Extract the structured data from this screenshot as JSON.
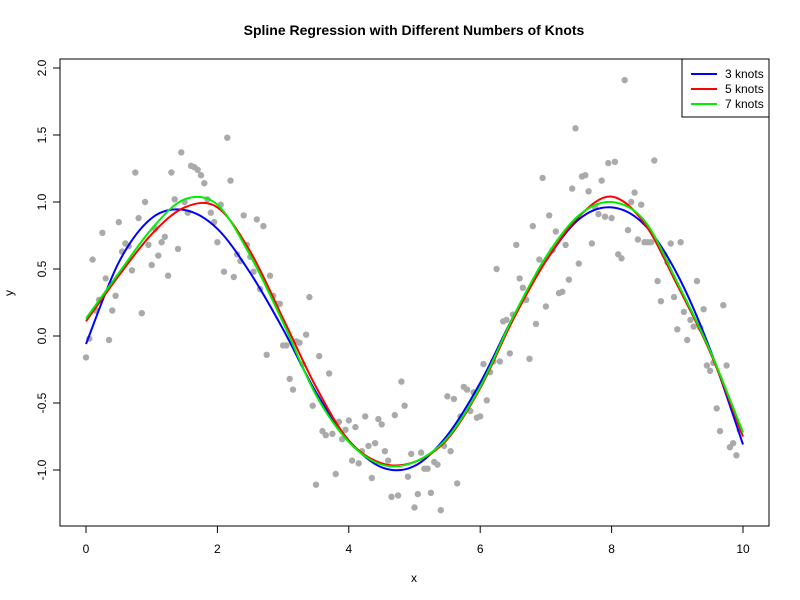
{
  "chart_data": {
    "type": "scatter",
    "title": "Spline Regression with Different Numbers of Knots",
    "xlabel": "x",
    "ylabel": "y",
    "xlim": [
      0,
      10
    ],
    "ylim": [
      -1.35,
      2.05
    ],
    "xticks": [
      0,
      2,
      4,
      6,
      8,
      10
    ],
    "yticks": [
      -1.0,
      -0.5,
      0.0,
      0.5,
      1.0,
      1.5,
      2.0
    ],
    "xtick_labels": [
      "0",
      "2",
      "4",
      "6",
      "8",
      "10"
    ],
    "ytick_labels": [
      "-1.0",
      "-0.5",
      "0.0",
      "0.5",
      "1.0",
      "1.5",
      "2.0"
    ],
    "grid": false,
    "legend_position": "top-right",
    "points_color": "#aaaaaa",
    "points": [
      [
        0.0,
        -0.16
      ],
      [
        0.05,
        -0.02
      ],
      [
        0.1,
        0.57
      ],
      [
        0.15,
        0.19
      ],
      [
        0.2,
        0.27
      ],
      [
        0.25,
        0.77
      ],
      [
        0.3,
        0.43
      ],
      [
        0.35,
        -0.03
      ],
      [
        0.4,
        0.19
      ],
      [
        0.45,
        0.3
      ],
      [
        0.5,
        0.85
      ],
      [
        0.55,
        0.63
      ],
      [
        0.6,
        0.69
      ],
      [
        0.65,
        0.67
      ],
      [
        0.7,
        0.49
      ],
      [
        0.75,
        1.22
      ],
      [
        0.8,
        0.88
      ],
      [
        0.85,
        0.17
      ],
      [
        0.9,
        1.0
      ],
      [
        0.95,
        0.68
      ],
      [
        1.0,
        0.53
      ],
      [
        1.05,
        0.8
      ],
      [
        1.1,
        0.6
      ],
      [
        1.15,
        0.7
      ],
      [
        1.2,
        0.74
      ],
      [
        1.25,
        0.45
      ],
      [
        1.3,
        1.22
      ],
      [
        1.35,
        1.02
      ],
      [
        1.4,
        0.65
      ],
      [
        1.45,
        1.37
      ],
      [
        1.5,
        1.0
      ],
      [
        1.55,
        0.92
      ],
      [
        1.6,
        1.27
      ],
      [
        1.65,
        1.26
      ],
      [
        1.7,
        1.24
      ],
      [
        1.75,
        1.2
      ],
      [
        1.8,
        1.14
      ],
      [
        1.85,
        1.02
      ],
      [
        1.9,
        0.92
      ],
      [
        1.95,
        0.85
      ],
      [
        2.0,
        0.7
      ],
      [
        2.05,
        0.98
      ],
      [
        2.1,
        0.48
      ],
      [
        2.15,
        1.48
      ],
      [
        2.2,
        1.16
      ],
      [
        2.25,
        0.44
      ],
      [
        2.3,
        0.61
      ],
      [
        2.35,
        0.56
      ],
      [
        2.4,
        0.9
      ],
      [
        2.45,
        0.68
      ],
      [
        2.5,
        0.59
      ],
      [
        2.55,
        0.48
      ],
      [
        2.6,
        0.87
      ],
      [
        2.65,
        0.35
      ],
      [
        2.7,
        0.82
      ],
      [
        2.75,
        -0.14
      ],
      [
        2.8,
        0.45
      ],
      [
        2.85,
        0.3
      ],
      [
        2.9,
        0.24
      ],
      [
        2.95,
        0.24
      ],
      [
        3.0,
        -0.07
      ],
      [
        3.05,
        -0.07
      ],
      [
        3.1,
        -0.32
      ],
      [
        3.15,
        -0.4
      ],
      [
        3.2,
        -0.04
      ],
      [
        3.25,
        -0.05
      ],
      [
        3.3,
        -0.21
      ],
      [
        3.35,
        0.01
      ],
      [
        3.4,
        0.29
      ],
      [
        3.45,
        -0.52
      ],
      [
        3.5,
        -1.11
      ],
      [
        3.55,
        -0.15
      ],
      [
        3.6,
        -0.71
      ],
      [
        3.65,
        -0.74
      ],
      [
        3.7,
        -0.28
      ],
      [
        3.75,
        -0.73
      ],
      [
        3.8,
        -1.03
      ],
      [
        3.85,
        -0.64
      ],
      [
        3.9,
        -0.77
      ],
      [
        3.95,
        -0.7
      ],
      [
        4.0,
        -0.63
      ],
      [
        4.05,
        -0.93
      ],
      [
        4.1,
        -0.68
      ],
      [
        4.15,
        -0.95
      ],
      [
        4.2,
        -0.86
      ],
      [
        4.25,
        -0.6
      ],
      [
        4.3,
        -0.82
      ],
      [
        4.35,
        -1.06
      ],
      [
        4.4,
        -0.8
      ],
      [
        4.45,
        -0.62
      ],
      [
        4.5,
        -0.66
      ],
      [
        4.55,
        -0.86
      ],
      [
        4.6,
        -0.93
      ],
      [
        4.65,
        -1.2
      ],
      [
        4.7,
        -0.59
      ],
      [
        4.75,
        -1.19
      ],
      [
        4.8,
        -0.34
      ],
      [
        4.85,
        -0.52
      ],
      [
        4.9,
        -1.05
      ],
      [
        4.95,
        -0.88
      ],
      [
        5.0,
        -1.28
      ],
      [
        5.05,
        -1.18
      ],
      [
        5.1,
        -0.87
      ],
      [
        5.15,
        -0.99
      ],
      [
        5.2,
        -0.99
      ],
      [
        5.25,
        -1.17
      ],
      [
        5.3,
        -0.94
      ],
      [
        5.35,
        -0.96
      ],
      [
        5.4,
        -1.3
      ],
      [
        5.45,
        -0.82
      ],
      [
        5.5,
        -0.45
      ],
      [
        5.55,
        -0.86
      ],
      [
        5.6,
        -0.47
      ],
      [
        5.65,
        -1.1
      ],
      [
        5.7,
        -0.6
      ],
      [
        5.75,
        -0.38
      ],
      [
        5.8,
        -0.4
      ],
      [
        5.85,
        -0.56
      ],
      [
        5.9,
        -0.42
      ],
      [
        5.95,
        -0.61
      ],
      [
        6.0,
        -0.6
      ],
      [
        6.05,
        -0.21
      ],
      [
        6.1,
        -0.48
      ],
      [
        6.15,
        -0.27
      ],
      [
        6.2,
        -0.19
      ],
      [
        6.25,
        0.5
      ],
      [
        6.3,
        -0.19
      ],
      [
        6.35,
        0.11
      ],
      [
        6.4,
        0.12
      ],
      [
        6.45,
        -0.13
      ],
      [
        6.5,
        0.16
      ],
      [
        6.55,
        0.68
      ],
      [
        6.6,
        0.43
      ],
      [
        6.65,
        0.36
      ],
      [
        6.7,
        0.27
      ],
      [
        6.75,
        -0.17
      ],
      [
        6.8,
        0.82
      ],
      [
        6.85,
        0.09
      ],
      [
        6.9,
        0.57
      ],
      [
        6.95,
        1.18
      ],
      [
        7.0,
        0.22
      ],
      [
        7.05,
        0.9
      ],
      [
        7.1,
        0.64
      ],
      [
        7.15,
        0.78
      ],
      [
        7.2,
        0.32
      ],
      [
        7.25,
        0.33
      ],
      [
        7.3,
        0.68
      ],
      [
        7.35,
        0.42
      ],
      [
        7.4,
        1.1
      ],
      [
        7.45,
        1.55
      ],
      [
        7.5,
        0.54
      ],
      [
        7.55,
        1.19
      ],
      [
        7.6,
        1.2
      ],
      [
        7.65,
        1.08
      ],
      [
        7.7,
        0.69
      ],
      [
        7.75,
        0.96
      ],
      [
        7.8,
        0.91
      ],
      [
        7.85,
        1.16
      ],
      [
        7.9,
        0.89
      ],
      [
        7.95,
        1.29
      ],
      [
        8.0,
        0.88
      ],
      [
        8.05,
        1.3
      ],
      [
        8.1,
        0.61
      ],
      [
        8.15,
        0.58
      ],
      [
        8.2,
        1.91
      ],
      [
        8.25,
        0.79
      ],
      [
        8.3,
        1.0
      ],
      [
        8.35,
        1.07
      ],
      [
        8.4,
        0.72
      ],
      [
        8.45,
        0.98
      ],
      [
        8.5,
        0.7
      ],
      [
        8.55,
        0.7
      ],
      [
        8.6,
        0.7
      ],
      [
        8.65,
        1.31
      ],
      [
        8.7,
        0.41
      ],
      [
        8.75,
        0.26
      ],
      [
        8.8,
        0.61
      ],
      [
        8.85,
        0.55
      ],
      [
        8.9,
        0.69
      ],
      [
        8.95,
        0.29
      ],
      [
        9.0,
        0.05
      ],
      [
        9.05,
        0.7
      ],
      [
        9.1,
        0.18
      ],
      [
        9.15,
        -0.03
      ],
      [
        9.2,
        0.12
      ],
      [
        9.25,
        0.07
      ],
      [
        9.3,
        0.41
      ],
      [
        9.35,
        0.06
      ],
      [
        9.4,
        0.2
      ],
      [
        9.45,
        -0.22
      ],
      [
        9.5,
        -0.26
      ],
      [
        9.55,
        -0.2
      ],
      [
        9.6,
        -0.54
      ],
      [
        9.65,
        -0.71
      ],
      [
        9.7,
        0.23
      ],
      [
        9.75,
        -0.22
      ],
      [
        9.8,
        -0.83
      ],
      [
        9.85,
        -0.8
      ],
      [
        9.9,
        -0.89
      ],
      [
        9.95,
        -0.7
      ]
    ],
    "series": [
      {
        "name": "3 knots",
        "color": "#0000ff",
        "x": [
          0,
          0.5,
          1.0,
          1.5,
          2.0,
          2.5,
          3.0,
          3.5,
          4.0,
          4.5,
          5.0,
          5.5,
          6.0,
          6.5,
          7.0,
          7.5,
          8.0,
          8.5,
          9.0,
          9.5,
          10.0
        ],
        "y": [
          -0.06,
          0.55,
          0.88,
          0.94,
          0.8,
          0.47,
          0.05,
          -0.42,
          -0.78,
          -0.98,
          -0.97,
          -0.74,
          -0.35,
          0.14,
          0.56,
          0.87,
          0.96,
          0.83,
          0.46,
          -0.1,
          -0.81
        ]
      },
      {
        "name": "5 knots",
        "color": "#ff0000",
        "x": [
          0,
          0.5,
          1.0,
          1.5,
          2.0,
          2.5,
          3.0,
          3.5,
          4.0,
          4.5,
          5.0,
          5.5,
          6.0,
          6.5,
          7.0,
          7.5,
          8.0,
          8.5,
          9.0,
          9.5,
          10.0
        ],
        "y": [
          0.11,
          0.45,
          0.76,
          0.96,
          0.96,
          0.63,
          0.13,
          -0.38,
          -0.78,
          -0.95,
          -0.94,
          -0.77,
          -0.39,
          0.12,
          0.56,
          0.89,
          1.04,
          0.84,
          0.38,
          -0.12,
          -0.75
        ]
      },
      {
        "name": "7 knots",
        "color": "#00ee00",
        "x": [
          0,
          0.5,
          1.0,
          1.5,
          2.0,
          2.5,
          3.0,
          3.5,
          4.0,
          4.5,
          5.0,
          5.5,
          6.0,
          6.5,
          7.0,
          7.5,
          8.0,
          8.5,
          9.0,
          9.5,
          10.0
        ],
        "y": [
          0.13,
          0.47,
          0.8,
          1.02,
          0.98,
          0.6,
          0.1,
          -0.44,
          -0.79,
          -0.96,
          -0.94,
          -0.76,
          -0.38,
          0.14,
          0.59,
          0.9,
          1.0,
          0.86,
          0.4,
          -0.11,
          -0.72
        ]
      }
    ]
  }
}
